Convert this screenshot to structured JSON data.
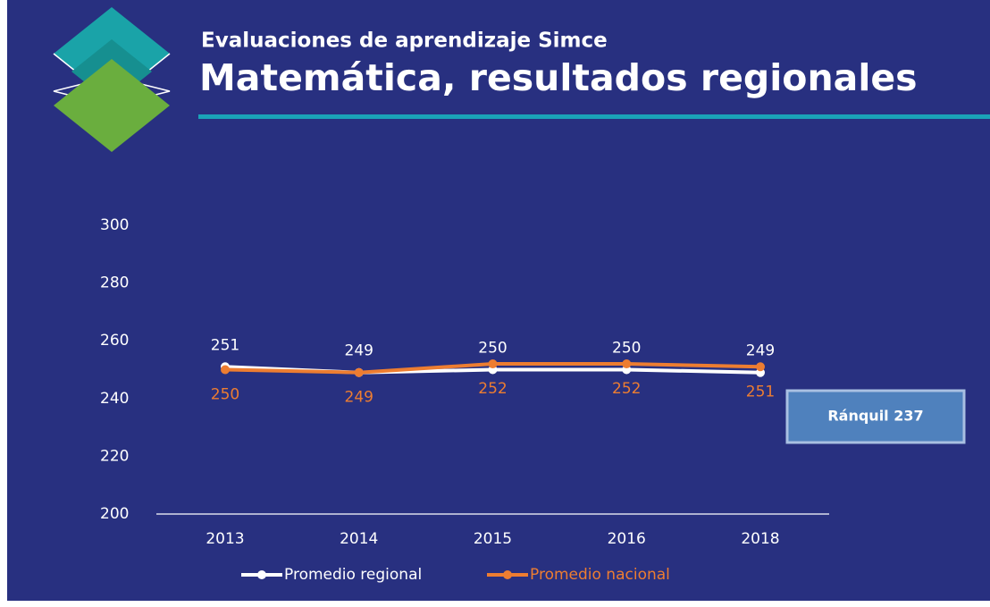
{
  "header": {
    "supertitle": "Evaluaciones de aprendizaje Simce",
    "title": "Matemática, resultados regionales"
  },
  "chart_data": {
    "type": "line",
    "categories": [
      "2013",
      "2014",
      "2015",
      "2016",
      "2018"
    ],
    "series": [
      {
        "name": "Promedio regional",
        "color": "#ffffff",
        "values": [
          251,
          249,
          250,
          250,
          249
        ],
        "label_position": "above"
      },
      {
        "name": "Promedio nacional",
        "color": "#ed7d31",
        "values": [
          250,
          249,
          252,
          252,
          251
        ],
        "label_position": "below"
      }
    ],
    "ylim": [
      200,
      300
    ],
    "yticks": [
      200,
      220,
      240,
      260,
      280,
      300
    ],
    "grid": false,
    "annotation": "Ránquil 237"
  }
}
